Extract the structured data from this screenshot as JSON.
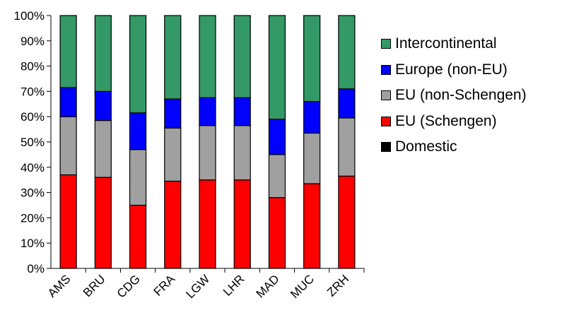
{
  "chart_data": {
    "type": "bar",
    "stacked": true,
    "normalized": true,
    "categories": [
      "AMS",
      "BRU",
      "CDG",
      "FRA",
      "LGW",
      "LHR",
      "MAD",
      "MUC",
      "ZRH"
    ],
    "series": [
      {
        "name": "Domestic",
        "color": "#000000",
        "values": [
          0,
          0,
          0,
          0,
          0,
          0,
          0,
          0,
          0
        ]
      },
      {
        "name": "EU (Schengen)",
        "color": "#ff0000",
        "values": [
          37,
          36,
          25,
          34.5,
          35,
          35,
          28,
          33.5,
          36.5
        ]
      },
      {
        "name": "EU (non-Schengen)",
        "color": "#a0a0a0",
        "values": [
          23,
          22.5,
          22,
          21,
          21.5,
          21.5,
          17,
          20,
          23
        ]
      },
      {
        "name": "Europe (non-EU)",
        "color": "#0000ff",
        "values": [
          11.5,
          11.5,
          14.5,
          11.5,
          11,
          11,
          14,
          12.5,
          11.5
        ]
      },
      {
        "name": "Intercontinental",
        "color": "#339966",
        "values": [
          28.5,
          30,
          38.5,
          33,
          32.5,
          32.5,
          41,
          34,
          29
        ]
      }
    ],
    "yticks": [
      "0%",
      "10%",
      "20%",
      "30%",
      "40%",
      "50%",
      "60%",
      "70%",
      "80%",
      "90%",
      "100%"
    ],
    "ylim": [
      0,
      100
    ],
    "legend_position": "right",
    "grid": false
  },
  "legend": {
    "items": [
      {
        "label": "Intercontinental",
        "color": "#339966"
      },
      {
        "label": "Europe (non-EU)",
        "color": "#0000ff"
      },
      {
        "label": "EU (non-Schengen)",
        "color": "#a0a0a0"
      },
      {
        "label": "EU (Schengen)",
        "color": "#ff0000"
      },
      {
        "label": "Domestic",
        "color": "#000000"
      }
    ]
  }
}
